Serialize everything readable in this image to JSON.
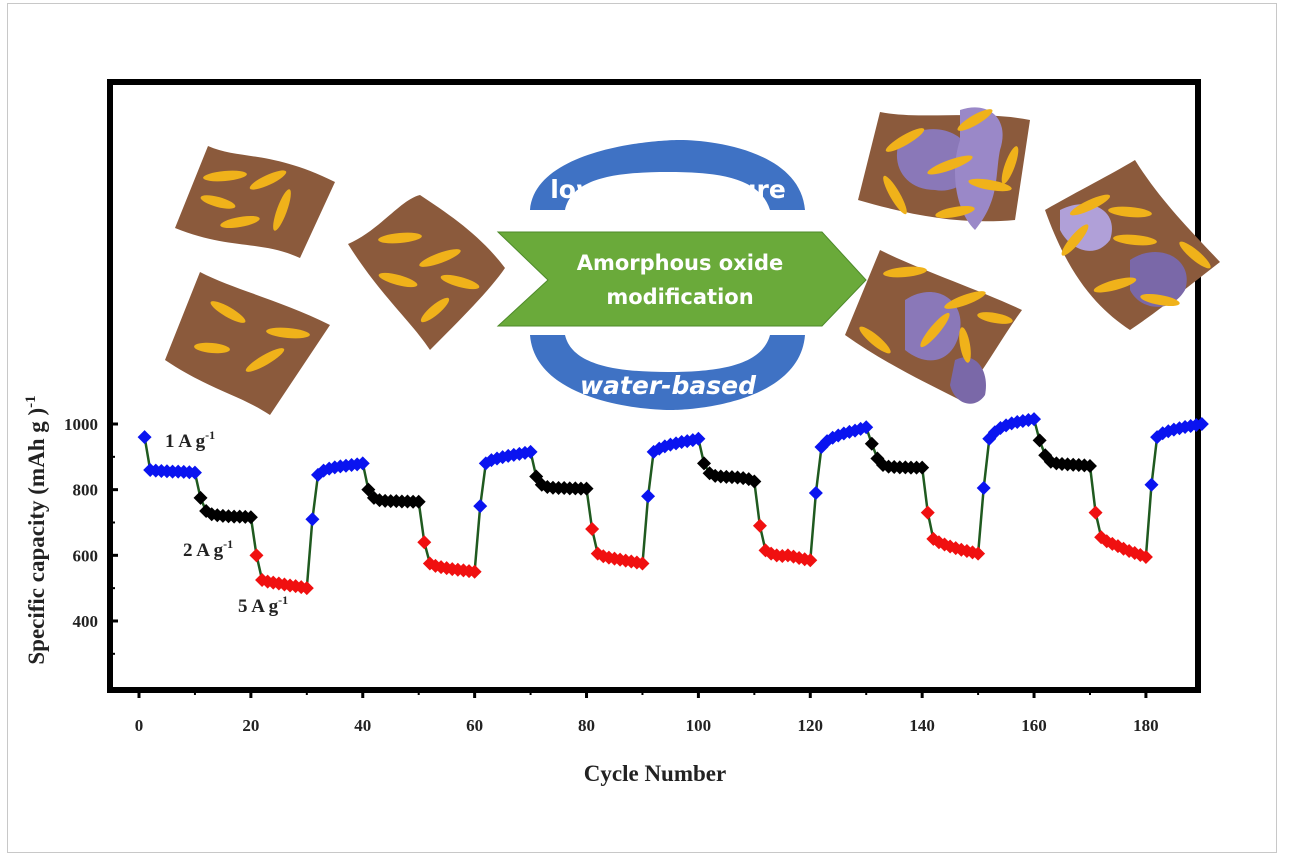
{
  "illustration": {
    "top_arc_text": "low temperature",
    "arrow_text_line1": "Amorphous oxide",
    "arrow_text_line2": "modification",
    "bottom_arc_text": "water-based",
    "colors": {
      "sheet": "#8b5a3c",
      "rod": "#f0b21a",
      "arc": "#3f72c4",
      "arrow": "#6aaa3a",
      "oxide": "#8a78b8"
    }
  },
  "chart_data": {
    "type": "scatter",
    "title": "",
    "xlabel": "Cycle Number",
    "ylabel": "Specific capacity (mAh g )",
    "ylabel_sup": "-1",
    "xlim": [
      -4,
      190
    ],
    "ylim": [
      190,
      2040
    ],
    "xticks": [
      "0",
      "20",
      "40",
      "60",
      "80",
      "100",
      "120",
      "140",
      "160",
      "180"
    ],
    "yticks": [
      "400",
      "600",
      "800",
      "1000"
    ],
    "grid": false,
    "legend": "none",
    "line_color": "#1f5a1f",
    "annotations": [
      {
        "text": "1 A g",
        "sup": "-1"
      },
      {
        "text": "2 A g",
        "sup": "-1"
      },
      {
        "text": "5 A g",
        "sup": "-1"
      }
    ],
    "rate_colors": {
      "1": "#0a14f0",
      "2": "#000000",
      "5": "#f01010"
    },
    "segments": [
      {
        "rate": "1",
        "x_start": 1,
        "values": [
          960,
          860,
          858,
          857,
          856,
          855,
          855,
          854,
          853,
          852
        ]
      },
      {
        "rate": "2",
        "x_start": 11,
        "values": [
          775,
          735,
          725,
          722,
          720,
          719,
          718,
          718,
          717,
          716
        ]
      },
      {
        "rate": "5",
        "x_start": 21,
        "values": [
          600,
          525,
          520,
          517,
          514,
          511,
          508,
          506,
          503,
          500
        ]
      },
      {
        "rate": "1",
        "x_start": 31,
        "values": [
          710,
          845,
          858,
          864,
          868,
          871,
          873,
          875,
          877,
          880
        ]
      },
      {
        "rate": "2",
        "x_start": 41,
        "values": [
          800,
          775,
          768,
          766,
          765,
          765,
          764,
          764,
          763,
          763
        ]
      },
      {
        "rate": "5",
        "x_start": 51,
        "values": [
          640,
          575,
          568,
          564,
          561,
          558,
          556,
          554,
          552,
          550
        ]
      },
      {
        "rate": "1",
        "x_start": 61,
        "values": [
          750,
          880,
          890,
          895,
          899,
          903,
          906,
          909,
          912,
          915
        ]
      },
      {
        "rate": "2",
        "x_start": 71,
        "values": [
          840,
          815,
          808,
          806,
          805,
          805,
          804,
          804,
          803,
          803
        ]
      },
      {
        "rate": "5",
        "x_start": 81,
        "values": [
          680,
          605,
          597,
          593,
          590,
          587,
          584,
          581,
          578,
          575
        ]
      },
      {
        "rate": "1",
        "x_start": 91,
        "values": [
          780,
          915,
          925,
          932,
          937,
          941,
          945,
          948,
          951,
          955
        ]
      },
      {
        "rate": "2",
        "x_start": 101,
        "values": [
          880,
          850,
          842,
          840,
          839,
          838,
          837,
          835,
          832,
          825
        ]
      },
      {
        "rate": "5",
        "x_start": 111,
        "values": [
          690,
          615,
          605,
          600,
          598,
          600,
          596,
          592,
          588,
          585
        ]
      },
      {
        "rate": "1",
        "x_start": 121,
        "values": [
          790,
          930,
          948,
          958,
          965,
          971,
          976,
          980,
          985,
          990
        ]
      },
      {
        "rate": "2",
        "x_start": 131,
        "values": [
          940,
          895,
          875,
          870,
          869,
          868,
          868,
          867,
          867,
          867
        ]
      },
      {
        "rate": "5",
        "x_start": 141,
        "values": [
          730,
          650,
          640,
          633,
          627,
          622,
          617,
          613,
          609,
          605
        ]
      },
      {
        "rate": "1",
        "x_start": 151,
        "values": [
          805,
          955,
          975,
          988,
          996,
          1002,
          1006,
          1009,
          1012,
          1015
        ]
      },
      {
        "rate": "2",
        "x_start": 161,
        "values": [
          950,
          905,
          885,
          880,
          878,
          877,
          876,
          875,
          874,
          872
        ]
      },
      {
        "rate": "5",
        "x_start": 171,
        "values": [
          730,
          655,
          643,
          635,
          628,
          620,
          613,
          607,
          601,
          595
        ]
      },
      {
        "rate": "1",
        "x_start": 181,
        "values": [
          815,
          960,
          972,
          978,
          983,
          987,
          991,
          994,
          997,
          1000
        ]
      }
    ]
  }
}
